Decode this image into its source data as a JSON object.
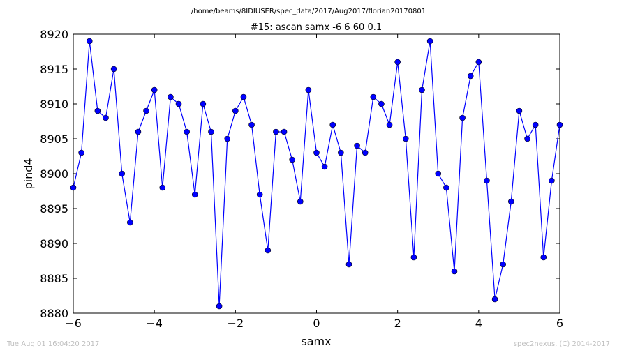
{
  "subtitle": "/home/beams/8IDIUSER/spec_data/2017/Aug2017/florian20170801",
  "footer": {
    "timestamp": "Tue Aug 01 16:04:20 2017",
    "credit": "spec2nexus, (C) 2014-2017"
  },
  "colors": {
    "series": "#0000ff",
    "axes": "#000000",
    "footer": "#c0c0c0"
  },
  "chart_data": {
    "type": "line",
    "title": "#15: ascan  samx -6 6  60 0.1",
    "xlabel": "samx",
    "ylabel": "pind4",
    "xlim": [
      -6,
      6
    ],
    "ylim": [
      8880,
      8920
    ],
    "xticks": [
      -6,
      -4,
      -2,
      0,
      2,
      4,
      6
    ],
    "xtick_labels": [
      "−6",
      "−4",
      "−2",
      "0",
      "2",
      "4",
      "6"
    ],
    "yticks": [
      8880,
      8885,
      8890,
      8895,
      8900,
      8905,
      8910,
      8915,
      8920
    ],
    "ytick_labels": [
      "8880",
      "8885",
      "8890",
      "8895",
      "8900",
      "8905",
      "8910",
      "8915",
      "8920"
    ],
    "grid": false,
    "markers": "circle",
    "x": [
      -6.0,
      -5.8,
      -5.6,
      -5.4,
      -5.2,
      -5.0,
      -4.8,
      -4.6,
      -4.4,
      -4.2,
      -4.0,
      -3.8,
      -3.6,
      -3.4,
      -3.2,
      -3.0,
      -2.8,
      -2.6,
      -2.4,
      -2.2,
      -2.0,
      -1.8,
      -1.6,
      -1.4,
      -1.2,
      -1.0,
      -0.8,
      -0.6,
      -0.4,
      -0.2,
      0.0,
      0.2,
      0.4,
      0.6,
      0.8,
      1.0,
      1.2,
      1.4,
      1.6,
      1.8,
      2.0,
      2.2,
      2.4,
      2.6,
      2.8,
      3.0,
      3.2,
      3.4,
      3.6,
      3.8,
      4.0,
      4.2,
      4.4,
      4.6,
      4.8,
      5.0,
      5.2,
      5.4,
      5.6,
      5.8,
      6.0
    ],
    "y": [
      8898,
      8903,
      8919,
      8909,
      8908,
      8915,
      8900,
      8893,
      8906,
      8909,
      8912,
      8898,
      8911,
      8910,
      8906,
      8897,
      8910,
      8906,
      8881,
      8905,
      8909,
      8911,
      8907,
      8897,
      8889,
      8906,
      8906,
      8902,
      8896,
      8912,
      8903,
      8901,
      8907,
      8903,
      8887,
      8904,
      8903,
      8911,
      8910,
      8907,
      8916,
      8905,
      8888,
      8912,
      8919,
      8900,
      8898,
      8886,
      8908,
      8914,
      8916,
      8899,
      8882,
      8887,
      8896,
      8909,
      8905,
      8907,
      8888,
      8899,
      8907
    ]
  }
}
